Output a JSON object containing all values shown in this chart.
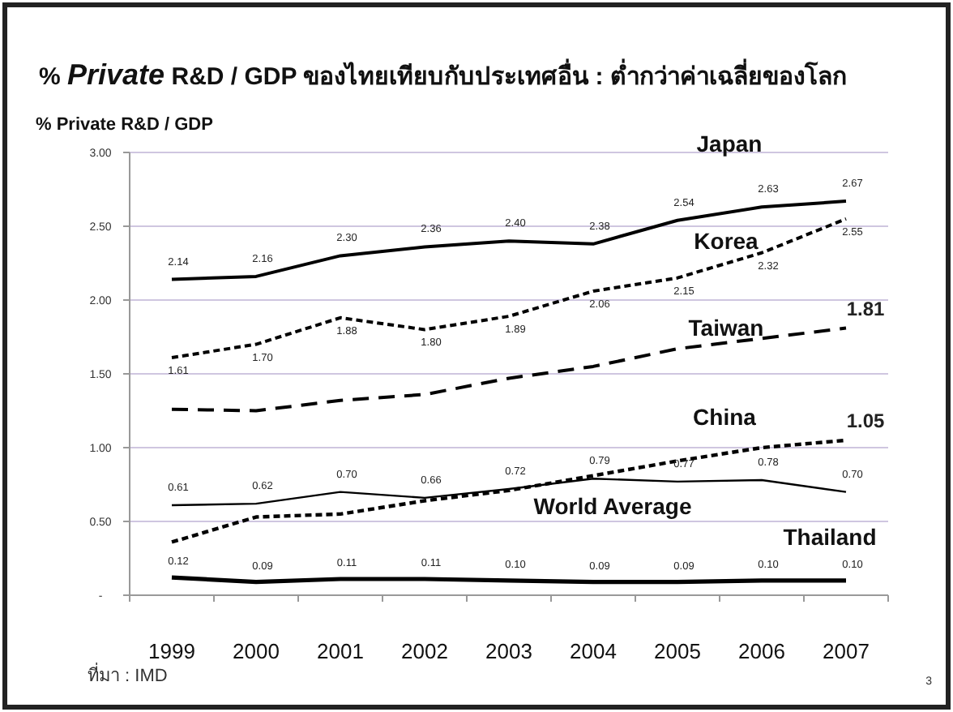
{
  "chart_data": {
    "type": "line",
    "title": "% *Private* R&D / GDP ของไทยเทียบกับประเทศอื่น  : ต่ำกว่าค่าเฉลี่ยของโลก",
    "ylabel": "% Private R&D / GDP",
    "categories": [
      "1999",
      "2000",
      "2001",
      "2002",
      "2003",
      "2004",
      "2005",
      "2006",
      "2007"
    ],
    "ylim": [
      0,
      3
    ],
    "yticks": [
      {
        "value": 0,
        "label": "-"
      },
      {
        "value": 0.5,
        "label": "0.50"
      },
      {
        "value": 1,
        "label": "1.00"
      },
      {
        "value": 1.5,
        "label": "1.50"
      },
      {
        "value": 2,
        "label": "2.00"
      },
      {
        "value": 2.5,
        "label": "2.50"
      },
      {
        "value": 3,
        "label": "3.00"
      }
    ],
    "grid": "y",
    "series": [
      {
        "name": "Japan",
        "color": "#000000",
        "line_style": "solid",
        "values": [
          2.14,
          2.16,
          2.3,
          2.36,
          2.4,
          2.38,
          2.54,
          2.63,
          2.67
        ],
        "value_labels": [
          "2.14",
          "2.16",
          "2.30",
          "2.36",
          "2.40",
          "2.38",
          "2.54",
          "2.63",
          "2.67"
        ]
      },
      {
        "name": "Korea",
        "color": "#000000",
        "line_style": "dotted",
        "values": [
          1.61,
          1.7,
          1.88,
          1.8,
          1.89,
          2.06,
          2.15,
          2.32,
          2.55
        ],
        "value_labels": [
          "1.61",
          "1.70",
          "1.88",
          "1.80",
          "1.89",
          "2.06",
          "2.15",
          "2.32",
          "2.55"
        ]
      },
      {
        "name": "Taiwan",
        "color": "#000000",
        "line_style": "dashed",
        "values": [
          1.26,
          1.25,
          1.32,
          1.36,
          1.47,
          1.55,
          1.67,
          1.74,
          1.81
        ],
        "value_labels": [
          null,
          null,
          null,
          null,
          null,
          null,
          null,
          null,
          "1.81"
        ]
      },
      {
        "name": "China",
        "color": "#000000",
        "line_style": "dotted",
        "values": [
          0.36,
          0.53,
          0.55,
          0.64,
          0.71,
          0.81,
          0.91,
          1.0,
          1.05
        ],
        "value_labels": [
          null,
          null,
          null,
          null,
          null,
          null,
          null,
          null,
          "1.05"
        ]
      },
      {
        "name": "World Average",
        "color": "#000000",
        "line_style": "solid",
        "values": [
          0.61,
          0.62,
          0.7,
          0.66,
          0.72,
          0.79,
          0.77,
          0.78,
          0.7
        ],
        "value_labels": [
          "0.61",
          "0.62",
          "0.70",
          "0.66",
          "0.72",
          "0.79",
          "0.77",
          "0.78",
          "0.70"
        ]
      },
      {
        "name": "Thailand",
        "color": "#000000",
        "line_style": "solid",
        "values": [
          0.12,
          0.09,
          0.11,
          0.11,
          0.1,
          0.09,
          0.09,
          0.1,
          0.1
        ],
        "value_labels": [
          "0.12",
          "0.09",
          "0.11",
          "0.11",
          "0.10",
          "0.09",
          "0.09",
          "0.10",
          "0.10"
        ]
      }
    ],
    "annotations": [
      "ที่มา : IMD",
      "3"
    ]
  }
}
